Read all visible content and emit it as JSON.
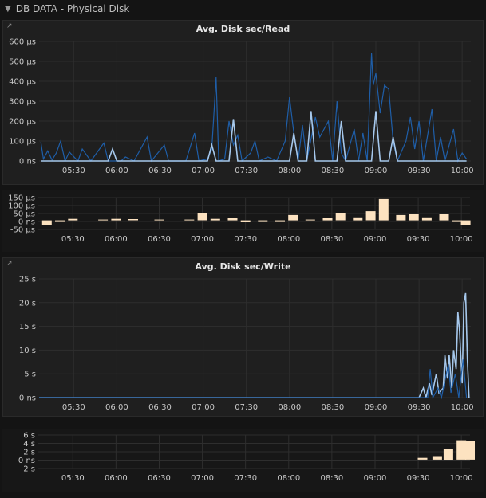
{
  "row": {
    "title": "DB DATA - Physical Disk"
  },
  "x_ticks": [
    "05:30",
    "06:00",
    "06:30",
    "07:00",
    "07:30",
    "08:00",
    "08:30",
    "09:00",
    "09:30",
    "10:00"
  ],
  "colors": {
    "dark_series": "#1f5ea8",
    "light_series": "#a6c8ec",
    "bar": "#fce2c0",
    "grid": "#2e2e2e",
    "axis_text": "#c8c8c8"
  },
  "chart_data": [
    {
      "type": "line",
      "title": "Avg. Disk sec/Read",
      "y_ticks": [
        "600 µs",
        "500 µs",
        "400 µs",
        "300 µs",
        "200 µs",
        "100 µs",
        "0 ns"
      ],
      "ylim": [
        0,
        600
      ],
      "xlim": [
        5.1,
        10.1
      ],
      "series": [
        {
          "color": "dark",
          "points": [
            [
              5.12,
              95
            ],
            [
              5.15,
              10
            ],
            [
              5.2,
              50
            ],
            [
              5.25,
              5
            ],
            [
              5.3,
              40
            ],
            [
              5.35,
              100
            ],
            [
              5.4,
              0
            ],
            [
              5.45,
              45
            ],
            [
              5.55,
              0
            ],
            [
              5.6,
              60
            ],
            [
              5.7,
              0
            ],
            [
              5.85,
              90
            ],
            [
              5.9,
              0
            ],
            [
              6.05,
              0
            ],
            [
              6.1,
              20
            ],
            [
              6.2,
              0
            ],
            [
              6.35,
              120
            ],
            [
              6.4,
              0
            ],
            [
              6.55,
              80
            ],
            [
              6.6,
              0
            ],
            [
              6.8,
              0
            ],
            [
              6.9,
              140
            ],
            [
              6.95,
              0
            ],
            [
              7.05,
              10
            ],
            [
              7.1,
              60
            ],
            [
              7.15,
              420
            ],
            [
              7.18,
              0
            ],
            [
              7.25,
              10
            ],
            [
              7.3,
              200
            ],
            [
              7.35,
              80
            ],
            [
              7.4,
              130
            ],
            [
              7.45,
              0
            ],
            [
              7.55,
              40
            ],
            [
              7.6,
              100
            ],
            [
              7.65,
              0
            ],
            [
              7.75,
              20
            ],
            [
              7.85,
              0
            ],
            [
              7.95,
              100
            ],
            [
              8.0,
              320
            ],
            [
              8.05,
              140
            ],
            [
              8.1,
              0
            ],
            [
              8.15,
              180
            ],
            [
              8.2,
              0
            ],
            [
              8.3,
              220
            ],
            [
              8.35,
              120
            ],
            [
              8.45,
              200
            ],
            [
              8.5,
              0
            ],
            [
              8.55,
              300
            ],
            [
              8.6,
              40
            ],
            [
              8.65,
              0
            ],
            [
              8.7,
              80
            ],
            [
              8.75,
              160
            ],
            [
              8.8,
              0
            ],
            [
              8.85,
              140
            ],
            [
              8.9,
              0
            ],
            [
              8.95,
              540
            ],
            [
              8.97,
              380
            ],
            [
              9.0,
              440
            ],
            [
              9.05,
              240
            ],
            [
              9.1,
              380
            ],
            [
              9.15,
              360
            ],
            [
              9.2,
              100
            ],
            [
              9.25,
              0
            ],
            [
              9.35,
              100
            ],
            [
              9.4,
              220
            ],
            [
              9.45,
              60
            ],
            [
              9.5,
              200
            ],
            [
              9.55,
              0
            ],
            [
              9.65,
              260
            ],
            [
              9.7,
              0
            ],
            [
              9.75,
              120
            ],
            [
              9.8,
              0
            ],
            [
              9.9,
              160
            ],
            [
              9.95,
              0
            ],
            [
              10.0,
              40
            ],
            [
              10.05,
              10
            ]
          ]
        },
        {
          "color": "light",
          "points": [
            [
              5.12,
              0
            ],
            [
              5.9,
              0
            ],
            [
              5.95,
              60
            ],
            [
              6.0,
              0
            ],
            [
              7.05,
              0
            ],
            [
              7.1,
              80
            ],
            [
              7.15,
              0
            ],
            [
              7.3,
              0
            ],
            [
              7.35,
              210
            ],
            [
              7.4,
              0
            ],
            [
              8.0,
              0
            ],
            [
              8.05,
              140
            ],
            [
              8.1,
              0
            ],
            [
              8.2,
              0
            ],
            [
              8.25,
              250
            ],
            [
              8.3,
              0
            ],
            [
              8.55,
              0
            ],
            [
              8.6,
              200
            ],
            [
              8.65,
              0
            ],
            [
              8.95,
              0
            ],
            [
              9.0,
              250
            ],
            [
              9.05,
              0
            ],
            [
              9.15,
              0
            ],
            [
              9.2,
              120
            ],
            [
              9.25,
              0
            ],
            [
              9.9,
              0
            ],
            [
              10.05,
              0
            ]
          ]
        }
      ]
    },
    {
      "type": "bar",
      "title": "",
      "y_ticks": [
        "150 µs",
        "100 µs",
        "50 µs",
        "0 ns",
        "-50 µs"
      ],
      "ylim": [
        -60,
        150
      ],
      "xlim": [
        5.1,
        10.1
      ],
      "values": [
        [
          5.2,
          -30
        ],
        [
          5.35,
          -5
        ],
        [
          5.5,
          10
        ],
        [
          5.85,
          5
        ],
        [
          6.0,
          10
        ],
        [
          6.2,
          8
        ],
        [
          6.5,
          5
        ],
        [
          6.85,
          5
        ],
        [
          7.0,
          50
        ],
        [
          7.15,
          10
        ],
        [
          7.35,
          15
        ],
        [
          7.5,
          -10
        ],
        [
          7.7,
          -5
        ],
        [
          7.9,
          -5
        ],
        [
          8.05,
          35
        ],
        [
          8.25,
          5
        ],
        [
          8.45,
          15
        ],
        [
          8.6,
          50
        ],
        [
          8.8,
          20
        ],
        [
          8.95,
          60
        ],
        [
          9.1,
          140
        ],
        [
          9.3,
          35
        ],
        [
          9.45,
          40
        ],
        [
          9.6,
          20
        ],
        [
          9.8,
          40
        ],
        [
          9.95,
          -5
        ],
        [
          10.05,
          -30
        ]
      ]
    },
    {
      "type": "line",
      "title": "Avg. Disk sec/Write",
      "y_ticks": [
        "25 s",
        "20 s",
        "15 s",
        "10 s",
        "5 s",
        "0 ns"
      ],
      "ylim": [
        0,
        25
      ],
      "xlim": [
        5.1,
        10.1
      ],
      "series": [
        {
          "color": "light",
          "points": [
            [
              5.1,
              0
            ],
            [
              9.5,
              0
            ],
            [
              9.55,
              2
            ],
            [
              9.58,
              0
            ],
            [
              9.62,
              3
            ],
            [
              9.65,
              0.5
            ],
            [
              9.7,
              5
            ],
            [
              9.73,
              1
            ],
            [
              9.78,
              2
            ],
            [
              9.8,
              9
            ],
            [
              9.83,
              4
            ],
            [
              9.85,
              9
            ],
            [
              9.88,
              2
            ],
            [
              9.9,
              10
            ],
            [
              9.93,
              6
            ],
            [
              9.95,
              18
            ],
            [
              9.97,
              14
            ],
            [
              10.0,
              3
            ],
            [
              10.02,
              20
            ],
            [
              10.04,
              22
            ],
            [
              10.06,
              8
            ],
            [
              10.08,
              0
            ]
          ]
        },
        {
          "color": "dark",
          "points": [
            [
              5.1,
              0
            ],
            [
              9.6,
              0
            ],
            [
              9.63,
              6
            ],
            [
              9.66,
              0
            ],
            [
              9.72,
              2
            ],
            [
              9.76,
              0
            ],
            [
              9.84,
              7
            ],
            [
              9.87,
              1
            ],
            [
              9.92,
              5
            ],
            [
              9.96,
              0
            ],
            [
              10.01,
              8
            ],
            [
              10.05,
              0
            ]
          ]
        }
      ]
    },
    {
      "type": "bar",
      "title": "",
      "y_ticks": [
        "6 s",
        "4 s",
        "2 s",
        "0 ns",
        "-2 s"
      ],
      "ylim": [
        -2.5,
        7
      ],
      "xlim": [
        5.1,
        10.1
      ],
      "values": [
        [
          9.55,
          0.5
        ],
        [
          9.72,
          1.0
        ],
        [
          9.85,
          3.0
        ],
        [
          10.0,
          5.5
        ],
        [
          10.1,
          5.3
        ]
      ]
    }
  ]
}
